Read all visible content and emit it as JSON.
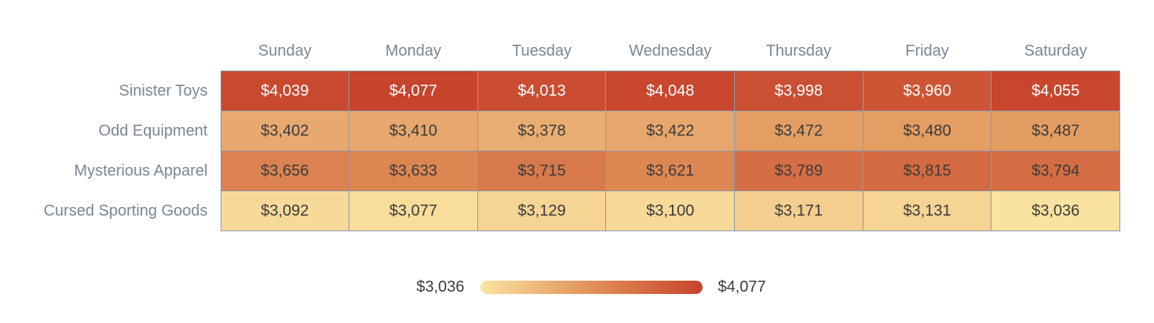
{
  "chart_data": {
    "type": "heatmap",
    "title": "",
    "columns": [
      "Sunday",
      "Monday",
      "Tuesday",
      "Wednesday",
      "Thursday",
      "Friday",
      "Saturday"
    ],
    "rows": [
      {
        "name": "Sinister Toys",
        "values": [
          4039,
          4077,
          4013,
          4048,
          3998,
          3960,
          4055
        ]
      },
      {
        "name": "Odd Equipment",
        "values": [
          3402,
          3410,
          3378,
          3422,
          3472,
          3480,
          3487
        ]
      },
      {
        "name": "Mysterious Apparel",
        "values": [
          3656,
          3633,
          3715,
          3621,
          3789,
          3815,
          3794
        ]
      },
      {
        "name": "Cursed Sporting Goods",
        "values": [
          3092,
          3077,
          3129,
          3100,
          3171,
          3131,
          3036
        ]
      }
    ],
    "value_prefix": "$",
    "colorscale": {
      "min": 3036,
      "max": 4077,
      "stops": [
        "#FAE3A1",
        "#E09158",
        "#C7432C"
      ]
    },
    "legend": {
      "min_label": "$3,036",
      "max_label": "$4,077",
      "position": "bottom-center"
    },
    "layout": {
      "grid": "off",
      "cell_borders": "on"
    }
  },
  "colors": {
    "border": "#8E99A5",
    "axis_label_text": "#7B8694",
    "cell_text_dark": "#3B3B3B",
    "cell_text_light": "#FFFFFF",
    "background": "#FFFFFF"
  }
}
